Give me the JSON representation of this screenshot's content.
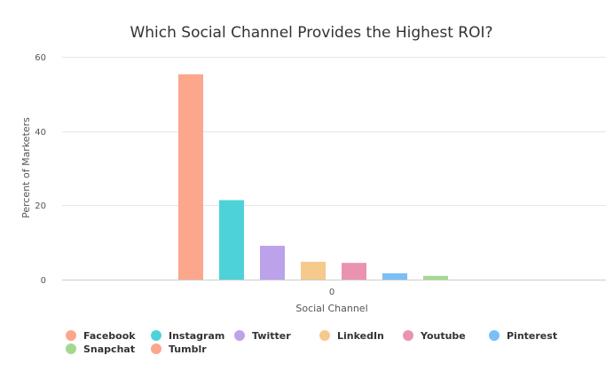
{
  "chart_data": {
    "type": "bar",
    "title": "Which Social Channel Provides the Highest ROI?",
    "xlabel": "Social Channel",
    "ylabel": "Percent of Marketers",
    "categories": [
      "0"
    ],
    "ylim": [
      0,
      60
    ],
    "yticks": [
      0,
      20,
      40,
      60
    ],
    "grid": true,
    "legend_position": "bottom-left",
    "series": [
      {
        "name": "Facebook",
        "values": [
          55.3
        ],
        "color": "#FCA68B"
      },
      {
        "name": "Instagram",
        "values": [
          21.4
        ],
        "color": "#4DD2DA"
      },
      {
        "name": "Twitter",
        "values": [
          9.1
        ],
        "color": "#BBA2EB"
      },
      {
        "name": "LinkedIn",
        "values": [
          4.8
        ],
        "color": "#F6C98C"
      },
      {
        "name": "Youtube",
        "values": [
          4.5
        ],
        "color": "#EA92B2"
      },
      {
        "name": "Pinterest",
        "values": [
          1.7
        ],
        "color": "#79BFF8"
      },
      {
        "name": "Snapchat",
        "values": [
          1.0
        ],
        "color": "#A3D98F"
      },
      {
        "name": "Tumblr",
        "values": [
          0.0
        ],
        "color": "#FCA68B"
      }
    ]
  }
}
